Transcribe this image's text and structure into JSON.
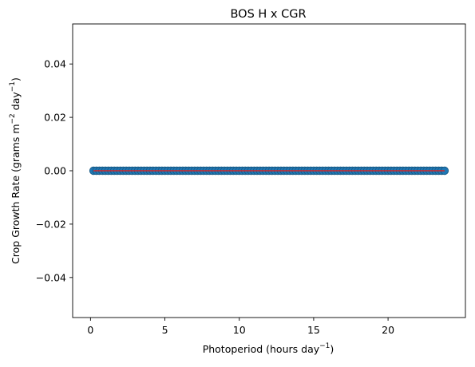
{
  "chart_data": {
    "type": "scatter",
    "title": "BOS H x CGR",
    "xlabel": {
      "text": "Photoperiod (hours day",
      "sup": "−1",
      "close": ")"
    },
    "ylabel": {
      "text1": "Crop Growth Rate (grams m",
      "sup1": "−2",
      "text2": " day",
      "sup2": "−1",
      "close": ")"
    },
    "xlim": [
      -1.2,
      25.2
    ],
    "ylim": [
      -0.055,
      0.055
    ],
    "x_ticks": [
      {
        "value": 0,
        "label": "0"
      },
      {
        "value": 5,
        "label": "5"
      },
      {
        "value": 10,
        "label": "10"
      },
      {
        "value": 15,
        "label": "15"
      },
      {
        "value": 20,
        "label": "20"
      }
    ],
    "y_ticks": [
      {
        "value": 0.04,
        "label": "0.04"
      },
      {
        "value": 0.02,
        "label": "0.02"
      },
      {
        "value": 0.0,
        "label": "0.00"
      },
      {
        "value": -0.02,
        "label": "−0.02"
      },
      {
        "value": -0.04,
        "label": "−0.04"
      }
    ],
    "series": [
      {
        "kind": "scatter",
        "color": "#1f77b4",
        "x_start": 0.2,
        "x_end": 23.8,
        "x_step": 0.2,
        "y": 0.0
      },
      {
        "kind": "line",
        "color": "#d62728",
        "x": [
          0.2,
          23.8
        ],
        "y": [
          0.0,
          0.0
        ]
      }
    ],
    "grid": false,
    "legend": false
  }
}
